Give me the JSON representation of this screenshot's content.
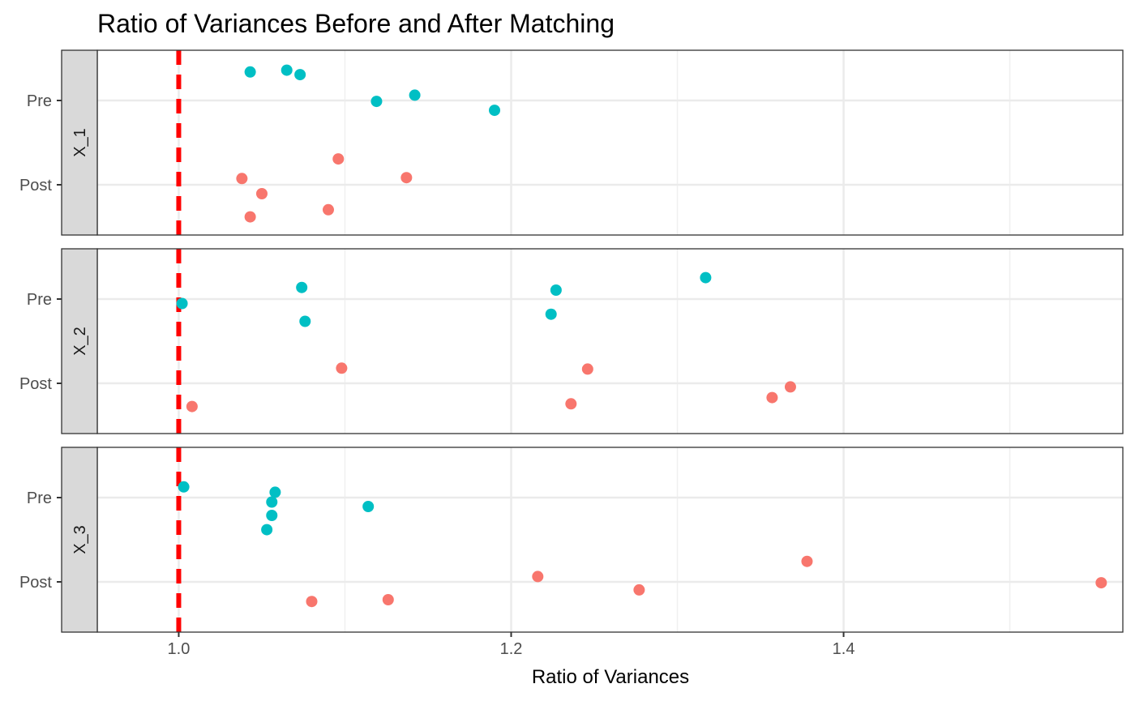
{
  "chart_data": {
    "type": "scatter",
    "title": "Ratio of Variances Before and After Matching",
    "xlabel": "Ratio of Variances",
    "ylabel": "",
    "xlim": [
      0.951,
      1.568
    ],
    "x_ticks": [
      1.0,
      1.2,
      1.4
    ],
    "x_tick_labels": [
      "1.0",
      "1.2",
      "1.4"
    ],
    "y_categories": [
      "Pre",
      "Post"
    ],
    "reference_line": {
      "x": 1.0,
      "style": "dashed",
      "color": "#FF0000"
    },
    "grid": true,
    "legend": "none",
    "colors": {
      "Pre": "#00BFC4",
      "Post": "#F8766D"
    },
    "panels": [
      {
        "label": "X_1",
        "series": [
          {
            "category": "Pre",
            "points": [
              {
                "x": 1.043,
                "y": 0.32
              },
              {
                "x": 1.065,
                "y": 0.34
              },
              {
                "x": 1.073,
                "y": 0.29
              },
              {
                "x": 1.119,
                "y": -0.01
              },
              {
                "x": 1.142,
                "y": 0.06
              },
              {
                "x": 1.19,
                "y": -0.11
              }
            ]
          },
          {
            "category": "Post",
            "points": [
              {
                "x": 1.096,
                "y": 0.29
              },
              {
                "x": 1.038,
                "y": 0.07
              },
              {
                "x": 1.05,
                "y": -0.1
              },
              {
                "x": 1.137,
                "y": 0.08
              },
              {
                "x": 1.043,
                "y": -0.36
              },
              {
                "x": 1.09,
                "y": -0.28
              }
            ]
          }
        ]
      },
      {
        "label": "X_2",
        "series": [
          {
            "category": "Pre",
            "points": [
              {
                "x": 1.002,
                "y": -0.05
              },
              {
                "x": 1.074,
                "y": 0.13
              },
              {
                "x": 1.076,
                "y": -0.25
              },
              {
                "x": 1.227,
                "y": 0.1
              },
              {
                "x": 1.224,
                "y": -0.17
              },
              {
                "x": 1.317,
                "y": 0.24
              }
            ]
          },
          {
            "category": "Post",
            "points": [
              {
                "x": 1.098,
                "y": 0.17
              },
              {
                "x": 1.008,
                "y": -0.26
              },
              {
                "x": 1.246,
                "y": 0.16
              },
              {
                "x": 1.236,
                "y": -0.23
              },
              {
                "x": 1.357,
                "y": -0.16
              },
              {
                "x": 1.368,
                "y": -0.04
              }
            ]
          }
        ]
      },
      {
        "label": "X_3",
        "series": [
          {
            "category": "Pre",
            "points": [
              {
                "x": 1.003,
                "y": 0.12
              },
              {
                "x": 1.058,
                "y": 0.06
              },
              {
                "x": 1.056,
                "y": -0.05
              },
              {
                "x": 1.056,
                "y": -0.2
              },
              {
                "x": 1.053,
                "y": -0.36
              },
              {
                "x": 1.114,
                "y": -0.1
              }
            ]
          },
          {
            "category": "Post",
            "points": [
              {
                "x": 1.08,
                "y": -0.22
              },
              {
                "x": 1.126,
                "y": -0.2
              },
              {
                "x": 1.216,
                "y": 0.06
              },
              {
                "x": 1.277,
                "y": -0.09
              },
              {
                "x": 1.378,
                "y": 0.23
              },
              {
                "x": 1.555,
                "y": -0.01
              }
            ]
          }
        ]
      }
    ]
  }
}
